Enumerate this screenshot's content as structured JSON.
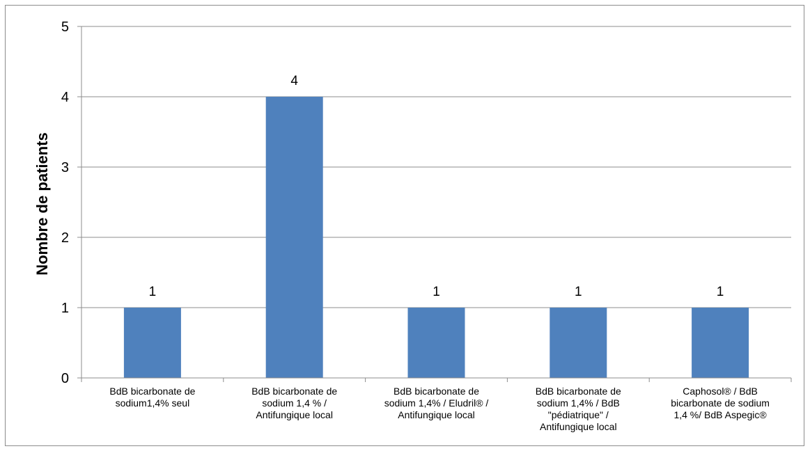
{
  "chart_data": {
    "type": "bar",
    "title": "",
    "xlabel": "",
    "ylabel": "Nombre de patients",
    "ylim": [
      0,
      5
    ],
    "yticks": [
      0,
      1,
      2,
      3,
      4,
      5
    ],
    "ytick_labels": [
      "0",
      "1",
      "2",
      "3",
      "4",
      "5"
    ],
    "grid": "horizontal",
    "legend": "none",
    "bar_color": "#4f81bd",
    "gridline_color": "#8c8c8c",
    "categories": [
      [
        "BdB bicarbonate de",
        "sodium1,4% seul"
      ],
      [
        "BdB bicarbonate de",
        "sodium 1,4 % /",
        "Antifungique local"
      ],
      [
        "BdB bicarbonate de",
        "sodium 1,4% / Eludril® /",
        "Antifungique local"
      ],
      [
        "BdB bicarbonate de",
        "sodium 1,4% / BdB",
        "\"pédiatrique\" /",
        "Antifungique local"
      ],
      [
        "Caphosol® / BdB",
        "bicarbonate de sodium",
        "1,4 %/ BdB Aspegic®"
      ]
    ],
    "values": [
      1,
      4,
      1,
      1,
      1
    ],
    "data_labels": [
      "1",
      "4",
      "1",
      "1",
      "1"
    ]
  }
}
